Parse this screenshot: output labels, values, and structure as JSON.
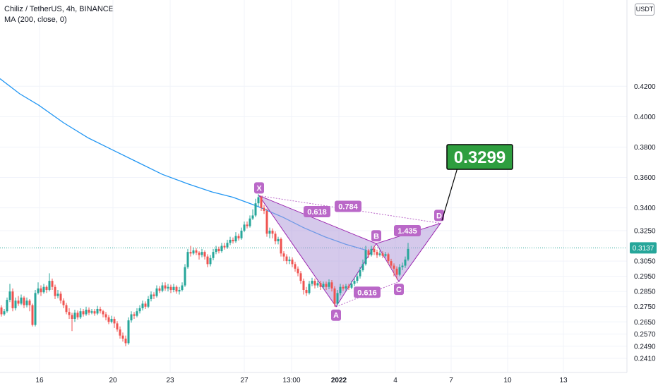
{
  "legend": {
    "title": "Chiliz / TetherUS, 4h, BINANCE",
    "indicator": "MA (200, close, 0)"
  },
  "currency": "USDT",
  "colors": {
    "up": "#26a69a",
    "down": "#ef5350",
    "ma": "#2196f3",
    "pattern_fill": "#b39ddb",
    "pattern_stroke": "#9c27b0",
    "label_bg": "#ba68c8",
    "target_bg": "#2e9e3f",
    "price_line": "#26a69a",
    "grid": "#f0f3fa",
    "axis_text": "#131722"
  },
  "chart_data": {
    "type": "candlestick",
    "title": "Chiliz / TetherUS, 4h, BINANCE",
    "y_ticks": [
      "0.4200",
      "0.4000",
      "0.3800",
      "0.3600",
      "0.3400",
      "0.3250",
      "0.3050",
      "0.2950",
      "0.2850",
      "0.2750",
      "0.2650",
      "0.2570",
      "0.2490",
      "0.2410"
    ],
    "x_ticks": [
      "16",
      "20",
      "23",
      "27",
      "13:00",
      "2022",
      "4",
      "7",
      "10",
      "13"
    ],
    "current_price": "0.3137",
    "target_price": "0.3299",
    "moving_average": {
      "name": "MA (200, close, 0)",
      "points": [
        [
          0,
          0.425
        ],
        [
          28,
          0.415
        ],
        [
          55,
          0.4075
        ],
        [
          90,
          0.396
        ],
        [
          125,
          0.386
        ],
        [
          160,
          0.378
        ],
        [
          195,
          0.37
        ],
        [
          230,
          0.362
        ],
        [
          265,
          0.356
        ],
        [
          300,
          0.3505
        ],
        [
          330,
          0.347
        ],
        [
          365,
          0.341
        ],
        [
          400,
          0.334
        ],
        [
          430,
          0.327
        ],
        [
          460,
          0.321
        ],
        [
          490,
          0.316
        ],
        [
          520,
          0.312
        ]
      ]
    },
    "pattern": {
      "points": [
        {
          "label": "X",
          "x": 367,
          "price": 0.348
        },
        {
          "label": "A",
          "x": 476,
          "price": 0.275
        },
        {
          "label": "B",
          "x": 533,
          "price": 0.3165
        },
        {
          "label": "C",
          "x": 565,
          "price": 0.2915
        },
        {
          "label": "D",
          "x": 624,
          "price": 0.3299
        }
      ],
      "ratios": [
        {
          "label": "0.618",
          "x": 449,
          "price": 0.3375
        },
        {
          "label": "0.784",
          "x": 493,
          "price": 0.341
        },
        {
          "label": "1.435",
          "x": 577,
          "price": 0.325
        },
        {
          "label": "0.616",
          "x": 520,
          "price": 0.2845
        }
      ]
    },
    "candles": [
      [
        2,
        0.2745,
        0.27,
        0.276,
        0.2685
      ],
      [
        6,
        0.27,
        0.272,
        0.2735,
        0.269
      ],
      [
        10,
        0.272,
        0.2795,
        0.281,
        0.271
      ],
      [
        14,
        0.2795,
        0.285,
        0.29,
        0.278
      ],
      [
        18,
        0.285,
        0.274,
        0.287,
        0.272
      ],
      [
        22,
        0.274,
        0.279,
        0.281,
        0.2725
      ],
      [
        26,
        0.279,
        0.277,
        0.282,
        0.2755
      ],
      [
        30,
        0.277,
        0.281,
        0.283,
        0.276
      ],
      [
        34,
        0.281,
        0.276,
        0.282,
        0.274
      ],
      [
        38,
        0.276,
        0.279,
        0.281,
        0.2745
      ],
      [
        42,
        0.279,
        0.276,
        0.28,
        0.272
      ],
      [
        46,
        0.276,
        0.263,
        0.277,
        0.262
      ],
      [
        50,
        0.263,
        0.284,
        0.286,
        0.262
      ],
      [
        54,
        0.284,
        0.287,
        0.291,
        0.283
      ],
      [
        58,
        0.287,
        0.2845,
        0.289,
        0.282
      ],
      [
        62,
        0.2845,
        0.288,
        0.29,
        0.2835
      ],
      [
        66,
        0.288,
        0.286,
        0.289,
        0.284
      ],
      [
        70,
        0.286,
        0.292,
        0.297,
        0.285
      ],
      [
        74,
        0.292,
        0.288,
        0.2935,
        0.286
      ],
      [
        78,
        0.288,
        0.282,
        0.2895,
        0.28
      ],
      [
        82,
        0.282,
        0.2835,
        0.286,
        0.2805
      ],
      [
        86,
        0.2835,
        0.279,
        0.285,
        0.277
      ],
      [
        90,
        0.279,
        0.276,
        0.2805,
        0.274
      ],
      [
        94,
        0.276,
        0.2715,
        0.2775,
        0.27
      ],
      [
        98,
        0.2715,
        0.2695,
        0.274,
        0.267
      ],
      [
        102,
        0.2695,
        0.267,
        0.271,
        0.259
      ],
      [
        106,
        0.267,
        0.271,
        0.273,
        0.265
      ],
      [
        110,
        0.271,
        0.268,
        0.2725,
        0.2665
      ],
      [
        114,
        0.268,
        0.272,
        0.274,
        0.267
      ],
      [
        118,
        0.272,
        0.27,
        0.2735,
        0.2685
      ],
      [
        122,
        0.27,
        0.273,
        0.275,
        0.269
      ],
      [
        126,
        0.273,
        0.271,
        0.2745,
        0.2695
      ],
      [
        130,
        0.271,
        0.272,
        0.2735,
        0.27
      ],
      [
        134,
        0.272,
        0.2705,
        0.2735,
        0.269
      ],
      [
        138,
        0.2705,
        0.2735,
        0.2755,
        0.2695
      ],
      [
        142,
        0.2735,
        0.272,
        0.275,
        0.2705
      ],
      [
        146,
        0.272,
        0.27,
        0.273,
        0.268
      ],
      [
        150,
        0.27,
        0.268,
        0.2715,
        0.266
      ],
      [
        154,
        0.268,
        0.265,
        0.2695,
        0.2635
      ],
      [
        158,
        0.265,
        0.267,
        0.269,
        0.264
      ],
      [
        162,
        0.267,
        0.264,
        0.2685,
        0.261
      ],
      [
        166,
        0.264,
        0.26,
        0.2655,
        0.2585
      ],
      [
        170,
        0.26,
        0.256,
        0.262,
        0.254
      ],
      [
        174,
        0.256,
        0.254,
        0.258,
        0.252
      ],
      [
        178,
        0.254,
        0.251,
        0.256,
        0.249
      ],
      [
        182,
        0.251,
        0.266,
        0.268,
        0.25
      ],
      [
        186,
        0.266,
        0.27,
        0.272,
        0.2645
      ],
      [
        190,
        0.27,
        0.269,
        0.2715,
        0.267
      ],
      [
        194,
        0.269,
        0.272,
        0.274,
        0.268
      ],
      [
        198,
        0.272,
        0.274,
        0.276,
        0.2705
      ],
      [
        202,
        0.274,
        0.277,
        0.279,
        0.2725
      ],
      [
        206,
        0.277,
        0.275,
        0.2785,
        0.2735
      ],
      [
        210,
        0.275,
        0.28,
        0.282,
        0.274
      ],
      [
        214,
        0.28,
        0.283,
        0.285,
        0.2785
      ],
      [
        218,
        0.283,
        0.282,
        0.2845,
        0.28
      ],
      [
        222,
        0.282,
        0.287,
        0.289,
        0.281
      ],
      [
        226,
        0.287,
        0.2855,
        0.2885,
        0.284
      ],
      [
        230,
        0.2855,
        0.289,
        0.291,
        0.2845
      ],
      [
        234,
        0.289,
        0.287,
        0.291,
        0.2855
      ],
      [
        238,
        0.287,
        0.288,
        0.29,
        0.285
      ],
      [
        242,
        0.288,
        0.286,
        0.2895,
        0.284
      ],
      [
        246,
        0.286,
        0.288,
        0.29,
        0.2845
      ],
      [
        250,
        0.288,
        0.285,
        0.289,
        0.2835
      ],
      [
        254,
        0.285,
        0.286,
        0.288,
        0.283
      ],
      [
        258,
        0.286,
        0.289,
        0.291,
        0.285
      ],
      [
        262,
        0.289,
        0.301,
        0.303,
        0.288
      ],
      [
        266,
        0.301,
        0.311,
        0.313,
        0.3
      ],
      [
        270,
        0.311,
        0.31,
        0.315,
        0.308
      ],
      [
        274,
        0.31,
        0.312,
        0.314,
        0.309
      ],
      [
        278,
        0.312,
        0.3105,
        0.3135,
        0.309
      ],
      [
        282,
        0.3105,
        0.309,
        0.3115,
        0.306
      ],
      [
        286,
        0.309,
        0.311,
        0.313,
        0.3075
      ],
      [
        290,
        0.311,
        0.308,
        0.312,
        0.306
      ],
      [
        294,
        0.308,
        0.303,
        0.3095,
        0.301
      ],
      [
        298,
        0.303,
        0.307,
        0.309,
        0.3015
      ],
      [
        302,
        0.307,
        0.311,
        0.313,
        0.3055
      ],
      [
        306,
        0.311,
        0.313,
        0.315,
        0.3095
      ],
      [
        310,
        0.313,
        0.3115,
        0.3145,
        0.31
      ],
      [
        314,
        0.3115,
        0.315,
        0.317,
        0.3105
      ],
      [
        318,
        0.315,
        0.314,
        0.317,
        0.3125
      ],
      [
        322,
        0.314,
        0.317,
        0.319,
        0.313
      ],
      [
        326,
        0.317,
        0.319,
        0.321,
        0.3155
      ],
      [
        330,
        0.319,
        0.318,
        0.3205,
        0.3165
      ],
      [
        334,
        0.318,
        0.3215,
        0.324,
        0.317
      ],
      [
        338,
        0.3215,
        0.32,
        0.323,
        0.3185
      ],
      [
        342,
        0.32,
        0.325,
        0.327,
        0.319
      ],
      [
        346,
        0.325,
        0.329,
        0.331,
        0.324
      ],
      [
        350,
        0.329,
        0.328,
        0.331,
        0.3265
      ],
      [
        354,
        0.328,
        0.333,
        0.335,
        0.327
      ],
      [
        358,
        0.333,
        0.335,
        0.339,
        0.332
      ],
      [
        362,
        0.335,
        0.343,
        0.346,
        0.334
      ],
      [
        366,
        0.343,
        0.347,
        0.349,
        0.341
      ],
      [
        370,
        0.347,
        0.34,
        0.348,
        0.338
      ],
      [
        374,
        0.34,
        0.338,
        0.342,
        0.336
      ],
      [
        378,
        0.338,
        0.323,
        0.3395,
        0.321
      ],
      [
        382,
        0.323,
        0.325,
        0.327,
        0.32
      ],
      [
        386,
        0.325,
        0.323,
        0.3265,
        0.32
      ],
      [
        390,
        0.323,
        0.318,
        0.3245,
        0.316
      ],
      [
        394,
        0.318,
        0.3195,
        0.321,
        0.316
      ],
      [
        398,
        0.3195,
        0.31,
        0.3205,
        0.308
      ],
      [
        402,
        0.31,
        0.308,
        0.3115,
        0.305
      ],
      [
        406,
        0.308,
        0.305,
        0.3095,
        0.303
      ],
      [
        410,
        0.305,
        0.306,
        0.308,
        0.303
      ],
      [
        414,
        0.306,
        0.303,
        0.3075,
        0.301
      ],
      [
        418,
        0.303,
        0.3,
        0.3045,
        0.298
      ],
      [
        422,
        0.3,
        0.297,
        0.3015,
        0.295
      ],
      [
        426,
        0.297,
        0.292,
        0.2985,
        0.29
      ],
      [
        430,
        0.292,
        0.286,
        0.2935,
        0.283
      ],
      [
        434,
        0.286,
        0.284,
        0.288,
        0.282
      ],
      [
        438,
        0.284,
        0.29,
        0.292,
        0.283
      ],
      [
        442,
        0.29,
        0.292,
        0.294,
        0.2885
      ],
      [
        446,
        0.292,
        0.289,
        0.2935,
        0.287
      ],
      [
        450,
        0.289,
        0.2905,
        0.292,
        0.2875
      ],
      [
        454,
        0.2905,
        0.288,
        0.292,
        0.286
      ],
      [
        458,
        0.288,
        0.29,
        0.2915,
        0.2865
      ],
      [
        462,
        0.29,
        0.288,
        0.2915,
        0.286
      ],
      [
        466,
        0.288,
        0.291,
        0.293,
        0.2865
      ],
      [
        470,
        0.291,
        0.287,
        0.2925,
        0.285
      ],
      [
        474,
        0.287,
        0.277,
        0.2885,
        0.275
      ],
      [
        478,
        0.277,
        0.284,
        0.286,
        0.276
      ],
      [
        482,
        0.284,
        0.288,
        0.29,
        0.2825
      ],
      [
        486,
        0.288,
        0.287,
        0.2895,
        0.2855
      ],
      [
        490,
        0.287,
        0.2885,
        0.29,
        0.2855
      ],
      [
        494,
        0.2885,
        0.2875,
        0.29,
        0.286
      ],
      [
        498,
        0.2875,
        0.29,
        0.292,
        0.2865
      ],
      [
        502,
        0.29,
        0.292,
        0.294,
        0.2885
      ],
      [
        506,
        0.292,
        0.295,
        0.297,
        0.2905
      ],
      [
        510,
        0.295,
        0.299,
        0.301,
        0.2935
      ],
      [
        514,
        0.299,
        0.303,
        0.306,
        0.298
      ],
      [
        518,
        0.303,
        0.312,
        0.315,
        0.302
      ],
      [
        522,
        0.312,
        0.309,
        0.313,
        0.307
      ],
      [
        526,
        0.309,
        0.313,
        0.315,
        0.308
      ],
      [
        530,
        0.313,
        0.311,
        0.315,
        0.309
      ],
      [
        534,
        0.311,
        0.309,
        0.3125,
        0.307
      ],
      [
        538,
        0.309,
        0.31,
        0.312,
        0.308
      ],
      [
        542,
        0.31,
        0.3085,
        0.3115,
        0.307
      ],
      [
        546,
        0.3085,
        0.3095,
        0.311,
        0.3075
      ],
      [
        550,
        0.3095,
        0.305,
        0.3105,
        0.303
      ],
      [
        554,
        0.305,
        0.302,
        0.3065,
        0.3
      ],
      [
        558,
        0.302,
        0.3,
        0.3035,
        0.295
      ],
      [
        562,
        0.3,
        0.296,
        0.3015,
        0.293
      ],
      [
        566,
        0.296,
        0.301,
        0.303,
        0.295
      ],
      [
        570,
        0.301,
        0.302,
        0.304,
        0.299
      ],
      [
        574,
        0.302,
        0.306,
        0.308,
        0.3005
      ],
      [
        578,
        0.306,
        0.313,
        0.317,
        0.305
      ]
    ]
  }
}
